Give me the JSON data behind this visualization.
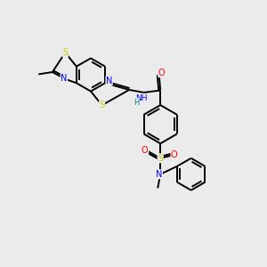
{
  "background_color": "#ebebeb",
  "atom_colors": {
    "S": "#cccc00",
    "N": "#0000ff",
    "O": "#ff0000",
    "C": "#000000",
    "H": "#008080"
  },
  "bond_color": "#000000",
  "bond_lw": 1.4,
  "figsize": [
    3.0,
    3.0
  ],
  "dpi": 100
}
